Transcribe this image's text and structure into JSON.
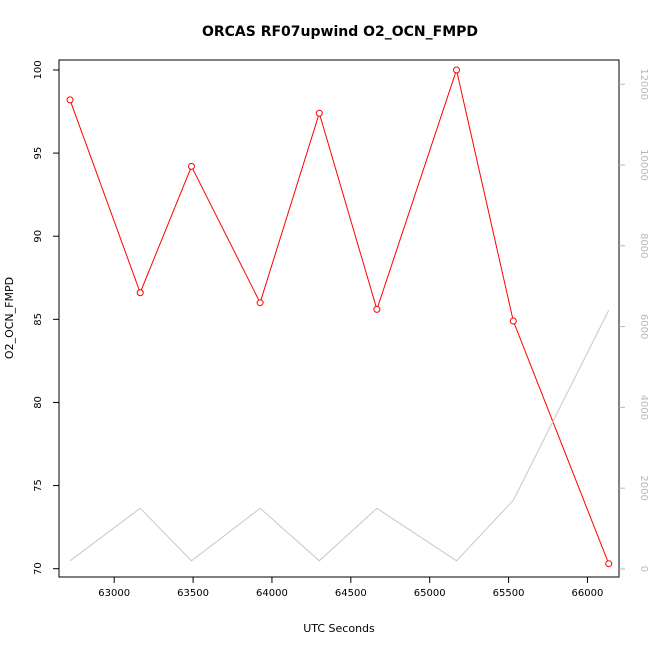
{
  "chart_data": {
    "type": "line",
    "title": "ORCAS RF07upwind O2_OCN_FMPD",
    "xlabel": "UTC Seconds",
    "ylabel": "O2_OCN_FMPD",
    "xlim": [
      62650,
      66200
    ],
    "ylim": [
      69.5,
      100.6
    ],
    "y2lim": [
      -200,
      12600
    ],
    "x_ticks": [
      63000,
      63500,
      64000,
      64500,
      65000,
      65500,
      66000
    ],
    "y_ticks": [
      70,
      75,
      80,
      85,
      90,
      95,
      100
    ],
    "y2_ticks": [
      0,
      2000,
      4000,
      6000,
      8000,
      10000,
      12000
    ],
    "grid": false,
    "series": [
      {
        "axis": "left",
        "color": "#ff0000",
        "markers": "open-circle",
        "x": [
          62720,
          63165,
          63490,
          63925,
          64300,
          64665,
          65170,
          65530,
          66135
        ],
        "values": [
          98.2,
          86.6,
          94.2,
          86.0,
          97.4,
          85.6,
          100.0,
          84.9,
          70.3
        ]
      },
      {
        "axis": "right",
        "color": "#c8c8c8",
        "markers": "none",
        "x": [
          62720,
          63165,
          63490,
          63925,
          64300,
          64665,
          65170,
          65530,
          66135
        ],
        "values": [
          200,
          1500,
          200,
          1500,
          200,
          1500,
          200,
          1700,
          6400
        ]
      }
    ]
  }
}
